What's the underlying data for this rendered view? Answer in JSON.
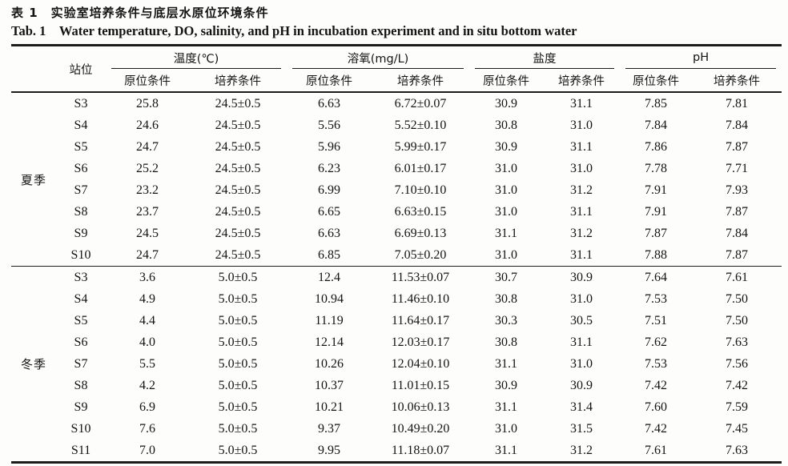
{
  "colors": {
    "ink": "#1c1c1c",
    "paper": "#fdfdfb"
  },
  "page": {
    "title_zh": "表 1　实验室培养条件与底层水原位环境条件",
    "title_en": "Tab. 1　Water temperature, DO, salinity, and pH in incubation experiment and in situ bottom water"
  },
  "table": {
    "station_header": "站位",
    "groups": [
      {
        "label": "温度(℃)"
      },
      {
        "label": "溶氧(mg/L)"
      },
      {
        "label": "盐度"
      },
      {
        "label": "pH"
      }
    ],
    "sub_headers": [
      "原位条件",
      "培养条件",
      "原位条件",
      "培养条件",
      "原位条件",
      "培养条件",
      "原位条件",
      "培养条件"
    ],
    "sections": [
      {
        "season": "夏季",
        "rows": [
          {
            "station": "S3",
            "cells": [
              "25.8",
              "24.5±0.5",
              "6.63",
              "6.72±0.07",
              "30.9",
              "31.1",
              "7.85",
              "7.81"
            ]
          },
          {
            "station": "S4",
            "cells": [
              "24.6",
              "24.5±0.5",
              "5.56",
              "5.52±0.10",
              "30.8",
              "31.0",
              "7.84",
              "7.84"
            ]
          },
          {
            "station": "S5",
            "cells": [
              "24.7",
              "24.5±0.5",
              "5.96",
              "5.99±0.17",
              "30.9",
              "31.1",
              "7.86",
              "7.87"
            ]
          },
          {
            "station": "S6",
            "cells": [
              "25.2",
              "24.5±0.5",
              "6.23",
              "6.01±0.17",
              "31.0",
              "31.0",
              "7.78",
              "7.71"
            ]
          },
          {
            "station": "S7",
            "cells": [
              "23.2",
              "24.5±0.5",
              "6.99",
              "7.10±0.10",
              "31.0",
              "31.2",
              "7.91",
              "7.93"
            ]
          },
          {
            "station": "S8",
            "cells": [
              "23.7",
              "24.5±0.5",
              "6.65",
              "6.63±0.15",
              "31.0",
              "31.1",
              "7.91",
              "7.87"
            ]
          },
          {
            "station": "S9",
            "cells": [
              "24.5",
              "24.5±0.5",
              "6.63",
              "6.69±0.13",
              "31.1",
              "31.2",
              "7.87",
              "7.84"
            ]
          },
          {
            "station": "S10",
            "cells": [
              "24.7",
              "24.5±0.5",
              "6.85",
              "7.05±0.20",
              "31.0",
              "31.1",
              "7.88",
              "7.87"
            ]
          }
        ]
      },
      {
        "season": "冬季",
        "rows": [
          {
            "station": "S3",
            "cells": [
              "3.6",
              "5.0±0.5",
              "12.4",
              "11.53±0.07",
              "30.7",
              "30.9",
              "7.64",
              "7.61"
            ]
          },
          {
            "station": "S4",
            "cells": [
              "4.9",
              "5.0±0.5",
              "10.94",
              "11.46±0.10",
              "30.8",
              "31.0",
              "7.53",
              "7.50"
            ]
          },
          {
            "station": "S5",
            "cells": [
              "4.4",
              "5.0±0.5",
              "11.19",
              "11.64±0.17",
              "30.3",
              "30.5",
              "7.51",
              "7.50"
            ]
          },
          {
            "station": "S6",
            "cells": [
              "4.0",
              "5.0±0.5",
              "12.14",
              "12.03±0.17",
              "30.8",
              "31.1",
              "7.62",
              "7.63"
            ]
          },
          {
            "station": "S7",
            "cells": [
              "5.5",
              "5.0±0.5",
              "10.26",
              "12.04±0.10",
              "31.1",
              "31.0",
              "7.53",
              "7.56"
            ]
          },
          {
            "station": "S8",
            "cells": [
              "4.2",
              "5.0±0.5",
              "10.37",
              "11.01±0.15",
              "30.9",
              "30.9",
              "7.42",
              "7.42"
            ]
          },
          {
            "station": "S9",
            "cells": [
              "6.9",
              "5.0±0.5",
              "10.21",
              "10.06±0.13",
              "31.1",
              "31.4",
              "7.60",
              "7.59"
            ]
          },
          {
            "station": "S10",
            "cells": [
              "7.6",
              "5.0±0.5",
              "9.37",
              "10.49±0.20",
              "31.0",
              "31.5",
              "7.42",
              "7.45"
            ]
          },
          {
            "station": "S11",
            "cells": [
              "7.0",
              "5.0±0.5",
              "9.95",
              "11.18±0.07",
              "31.1",
              "31.2",
              "7.61",
              "7.63"
            ]
          }
        ]
      }
    ]
  }
}
